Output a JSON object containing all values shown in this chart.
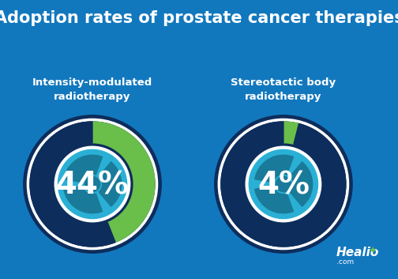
{
  "title": "Adoption rates of prostate cancer therapies",
  "title_color": "#FFFFFF",
  "title_fontsize": 15,
  "header_color": "#6abf4b",
  "bg_color": "#1278be",
  "chart1_label": "Intensity-modulated\nradiotherapy",
  "chart2_label": "Stereotactic body\nradiotherapy",
  "chart1_pct": 44,
  "chart2_pct": 4,
  "color_green": "#6abf4b",
  "color_dark_navy": "#0d2d5c",
  "color_teal": "#1a7a99",
  "color_light_blue": "#2ab0d5",
  "color_white": "#FFFFFF",
  "label_fontsize": 9.5,
  "pct_fontsize": 28
}
